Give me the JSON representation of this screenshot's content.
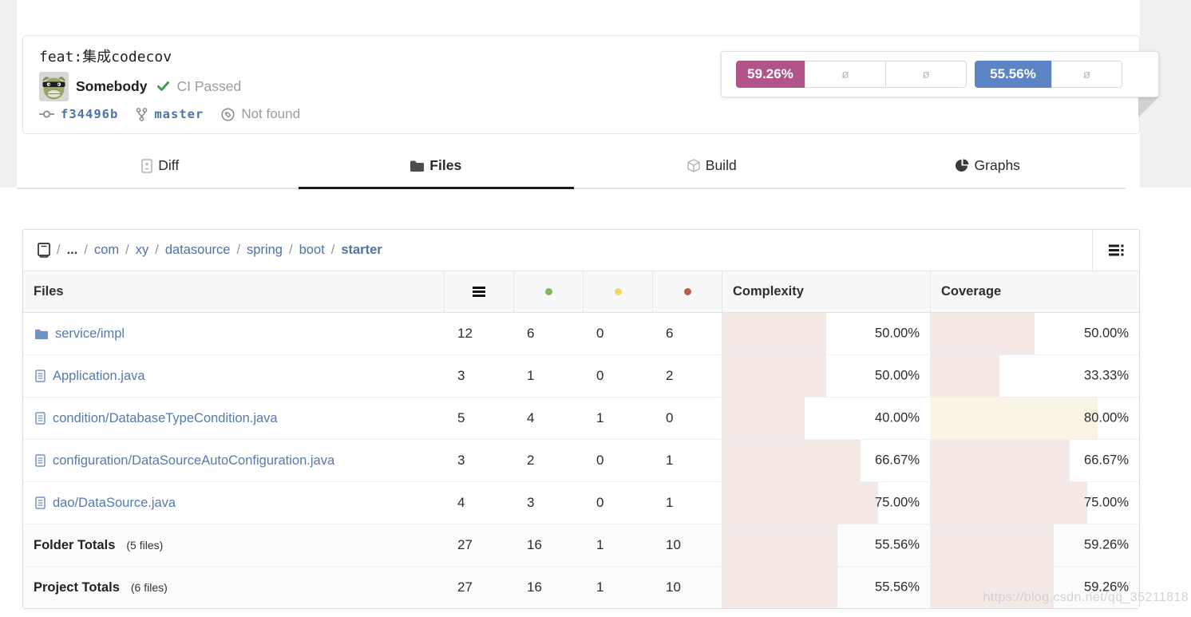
{
  "commit": {
    "title": "feat:集成codecov",
    "author": "Somebody",
    "ci_status": "CI Passed",
    "sha": "f34496b",
    "branch": "master",
    "tag_status": "Not found"
  },
  "badges": {
    "coverage_value": "59.26%",
    "complexity_value": "55.56%",
    "empty": "ø"
  },
  "tabs": {
    "diff": "Diff",
    "files": "Files",
    "build": "Build",
    "graphs": "Graphs"
  },
  "breadcrumb": {
    "separator": "/",
    "items": [
      "...",
      "com",
      "xy",
      "datasource",
      "spring",
      "boot",
      "starter"
    ]
  },
  "table": {
    "headers": {
      "files": "Files",
      "complexity": "Complexity",
      "coverage": "Coverage"
    },
    "rows": [
      {
        "name": "service/impl",
        "type": "folder",
        "lines": "12",
        "hits": "6",
        "partials": "0",
        "misses": "6",
        "complexity": "50.00%",
        "complexity_pct": 50,
        "coverage": "50.00%",
        "coverage_pct": 50
      },
      {
        "name": "Application.java",
        "type": "file",
        "lines": "3",
        "hits": "1",
        "partials": "0",
        "misses": "2",
        "complexity": "50.00%",
        "complexity_pct": 50,
        "coverage": "33.33%",
        "coverage_pct": 33.33
      },
      {
        "name": "condition/DatabaseTypeCondition.java",
        "type": "file",
        "lines": "5",
        "hits": "4",
        "partials": "1",
        "misses": "0",
        "complexity": "40.00%",
        "complexity_pct": 40,
        "coverage": "80.00%",
        "coverage_pct": 80
      },
      {
        "name": "configuration/DataSourceAutoConfiguration.java",
        "type": "file",
        "lines": "3",
        "hits": "2",
        "partials": "0",
        "misses": "1",
        "complexity": "66.67%",
        "complexity_pct": 66.67,
        "coverage": "66.67%",
        "coverage_pct": 66.67
      },
      {
        "name": "dao/DataSource.java",
        "type": "file",
        "lines": "4",
        "hits": "3",
        "partials": "0",
        "misses": "1",
        "complexity": "75.00%",
        "complexity_pct": 75,
        "coverage": "75.00%",
        "coverage_pct": 75
      }
    ],
    "totals": [
      {
        "label": "Folder Totals",
        "sub": "(5 files)",
        "lines": "27",
        "hits": "16",
        "partials": "1",
        "misses": "10",
        "complexity": "55.56%",
        "complexity_pct": 55.56,
        "coverage": "59.26%",
        "coverage_pct": 59.26
      },
      {
        "label": "Project Totals",
        "sub": "(6 files)",
        "lines": "27",
        "hits": "16",
        "partials": "1",
        "misses": "10",
        "complexity": "55.56%",
        "complexity_pct": 55.56,
        "coverage": "59.26%",
        "coverage_pct": 59.26
      }
    ]
  },
  "colors": {
    "coverage_badge": "#b0548a",
    "complexity_badge": "#5c84c4",
    "fill_low": "#f5e9e6",
    "fill_high": "#f8f3e2",
    "hits_dot": "#8ab35f",
    "partials_dot": "#f0d867",
    "misses_dot": "#c3584a"
  },
  "watermark": "https://blog.csdn.net/qq_35211818"
}
